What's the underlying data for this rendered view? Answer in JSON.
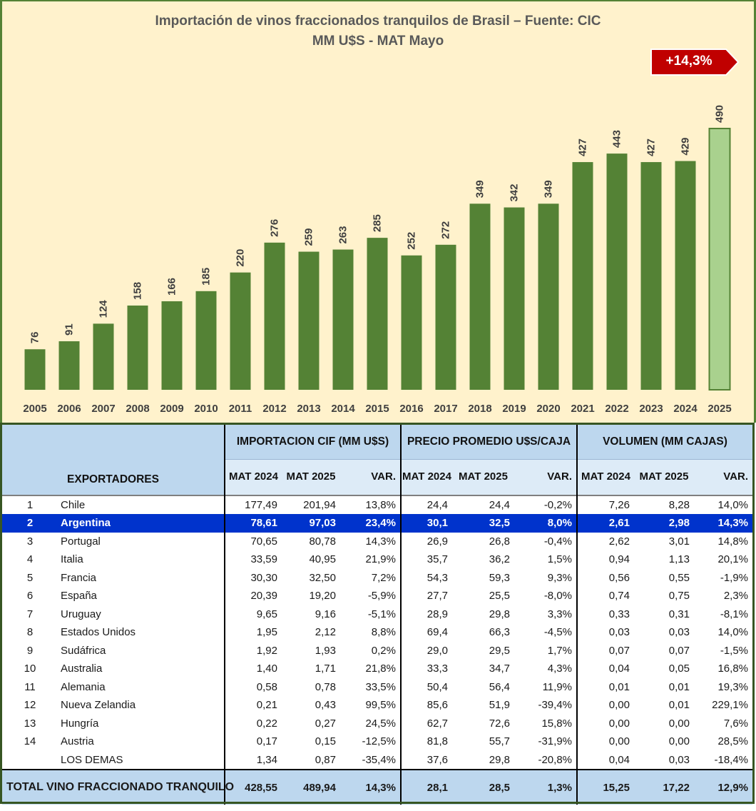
{
  "chart_data": {
    "type": "bar",
    "title": "Importación de vinos fraccionados tranquilos de Brasil – Fuente: CIC",
    "subtitle": "MM U$S - MAT Mayo",
    "xlabel": "",
    "ylabel": "",
    "ylim": [
      0,
      490
    ],
    "grid": false,
    "categories": [
      "2005",
      "2006",
      "2007",
      "2008",
      "2009",
      "2010",
      "2011",
      "2012",
      "2013",
      "2014",
      "2015",
      "2016",
      "2017",
      "2018",
      "2019",
      "2020",
      "2021",
      "2022",
      "2023",
      "2024",
      "2025"
    ],
    "values": [
      76,
      91,
      124,
      158,
      166,
      185,
      220,
      276,
      259,
      263,
      285,
      252,
      272,
      349,
      342,
      349,
      427,
      443,
      427,
      429,
      490
    ],
    "highlight_category": "2025",
    "annotation": "+14,3%",
    "colors": {
      "bar": "#548235",
      "highlight_bar": "#A9D18E",
      "label": "#3f3f3f",
      "badge": "#C00000",
      "background": "#FFF2CC"
    }
  },
  "table": {
    "exporters_header": "EXPORTADORES",
    "groups": [
      "IMPORTACION CIF (MM U$S)",
      "PRECIO PROMEDIO U$S/CAJA",
      "VOLUMEN (MM CAJAS)"
    ],
    "sub_headers": {
      "mat_2024": "MAT 2024",
      "mat_2025": "MAT 2025",
      "var": "VAR."
    },
    "rows": [
      {
        "rank": "1",
        "country": "Chile",
        "cif24": "177,49",
        "cif25": "201,94",
        "cifvar": "13,8%",
        "p24": "24,4",
        "p25": "24,4",
        "pvar": "-0,2%",
        "v24": "7,26",
        "v25": "8,28",
        "vvar": "14,0%"
      },
      {
        "rank": "2",
        "country": "Argentina",
        "cif24": "78,61",
        "cif25": "97,03",
        "cifvar": "23,4%",
        "p24": "30,1",
        "p25": "32,5",
        "pvar": "8,0%",
        "v24": "2,61",
        "v25": "2,98",
        "vvar": "14,3%"
      },
      {
        "rank": "3",
        "country": "Portugal",
        "cif24": "70,65",
        "cif25": "80,78",
        "cifvar": "14,3%",
        "p24": "26,9",
        "p25": "26,8",
        "pvar": "-0,4%",
        "v24": "2,62",
        "v25": "3,01",
        "vvar": "14,8%"
      },
      {
        "rank": "4",
        "country": "Italia",
        "cif24": "33,59",
        "cif25": "40,95",
        "cifvar": "21,9%",
        "p24": "35,7",
        "p25": "36,2",
        "pvar": "1,5%",
        "v24": "0,94",
        "v25": "1,13",
        "vvar": "20,1%"
      },
      {
        "rank": "5",
        "country": "Francia",
        "cif24": "30,30",
        "cif25": "32,50",
        "cifvar": "7,2%",
        "p24": "54,3",
        "p25": "59,3",
        "pvar": "9,3%",
        "v24": "0,56",
        "v25": "0,55",
        "vvar": "-1,9%"
      },
      {
        "rank": "6",
        "country": "España",
        "cif24": "20,39",
        "cif25": "19,20",
        "cifvar": "-5,9%",
        "p24": "27,7",
        "p25": "25,5",
        "pvar": "-8,0%",
        "v24": "0,74",
        "v25": "0,75",
        "vvar": "2,3%"
      },
      {
        "rank": "7",
        "country": "Uruguay",
        "cif24": "9,65",
        "cif25": "9,16",
        "cifvar": "-5,1%",
        "p24": "28,9",
        "p25": "29,8",
        "pvar": "3,3%",
        "v24": "0,33",
        "v25": "0,31",
        "vvar": "-8,1%"
      },
      {
        "rank": "8",
        "country": "Estados Unidos",
        "cif24": "1,95",
        "cif25": "2,12",
        "cifvar": "8,8%",
        "p24": "69,4",
        "p25": "66,3",
        "pvar": "-4,5%",
        "v24": "0,03",
        "v25": "0,03",
        "vvar": "14,0%"
      },
      {
        "rank": "9",
        "country": "Sudáfrica",
        "cif24": "1,92",
        "cif25": "1,93",
        "cifvar": "0,2%",
        "p24": "29,0",
        "p25": "29,5",
        "pvar": "1,7%",
        "v24": "0,07",
        "v25": "0,07",
        "vvar": "-1,5%"
      },
      {
        "rank": "10",
        "country": "Australia",
        "cif24": "1,40",
        "cif25": "1,71",
        "cifvar": "21,8%",
        "p24": "33,3",
        "p25": "34,7",
        "pvar": "4,3%",
        "v24": "0,04",
        "v25": "0,05",
        "vvar": "16,8%"
      },
      {
        "rank": "11",
        "country": "Alemania",
        "cif24": "0,58",
        "cif25": "0,78",
        "cifvar": "33,5%",
        "p24": "50,4",
        "p25": "56,4",
        "pvar": "11,9%",
        "v24": "0,01",
        "v25": "0,01",
        "vvar": "19,3%"
      },
      {
        "rank": "12",
        "country": "Nueva Zelandia",
        "cif24": "0,21",
        "cif25": "0,43",
        "cifvar": "99,5%",
        "p24": "85,6",
        "p25": "51,9",
        "pvar": "-39,4%",
        "v24": "0,00",
        "v25": "0,01",
        "vvar": "229,1%"
      },
      {
        "rank": "13",
        "country": "Hungría",
        "cif24": "0,22",
        "cif25": "0,27",
        "cifvar": "24,5%",
        "p24": "62,7",
        "p25": "72,6",
        "pvar": "15,8%",
        "v24": "0,00",
        "v25": "0,00",
        "vvar": "7,6%"
      },
      {
        "rank": "14",
        "country": "Austria",
        "cif24": "0,17",
        "cif25": "0,15",
        "cifvar": "-12,5%",
        "p24": "81,8",
        "p25": "55,7",
        "pvar": "-31,9%",
        "v24": "0,00",
        "v25": "0,00",
        "vvar": "28,5%"
      },
      {
        "rank": "",
        "country": "LOS DEMAS",
        "cif24": "1,34",
        "cif25": "0,87",
        "cifvar": "-35,4%",
        "p24": "37,6",
        "p25": "29,8",
        "pvar": "-20,8%",
        "v24": "0,04",
        "v25": "0,03",
        "vvar": "-18,4%"
      }
    ],
    "highlight_row": 1,
    "total": {
      "label": "TOTAL VINO FRACCIONADO TRANQUILO",
      "cif24": "428,55",
      "cif25": "489,94",
      "cifvar": "14,3%",
      "p24": "28,1",
      "p25": "28,5",
      "pvar": "1,3%",
      "v24": "15,25",
      "v25": "17,22",
      "vvar": "12,9%"
    }
  }
}
